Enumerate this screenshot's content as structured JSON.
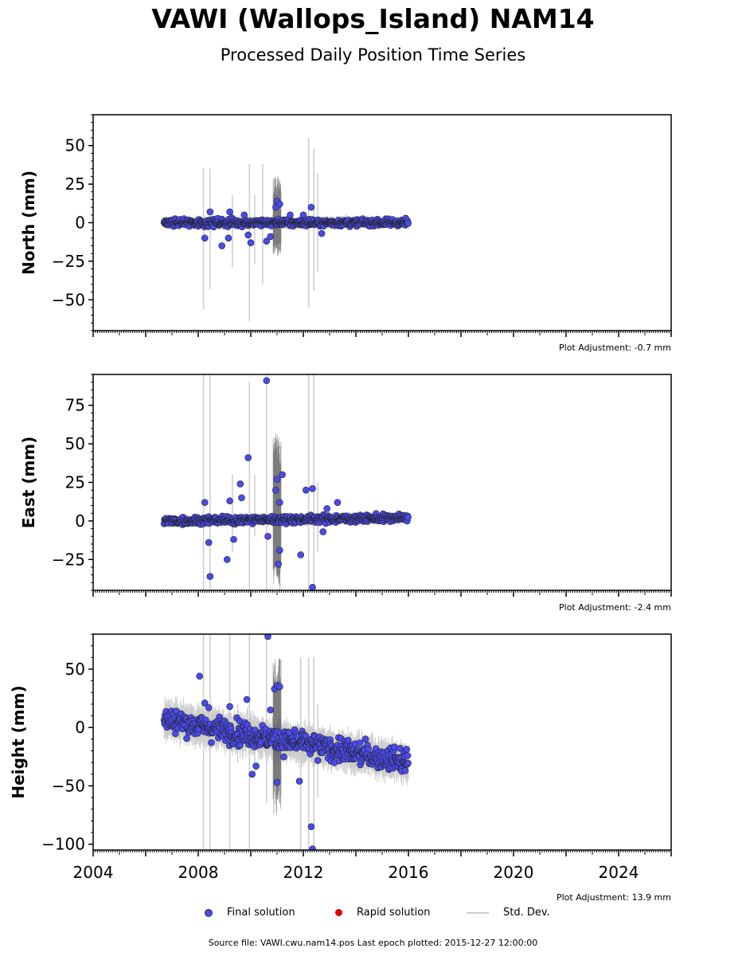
{
  "header": {
    "title": "VAWI (Wallops_Island) NAM14",
    "subtitle": "Processed Daily Position Time Series"
  },
  "legend": {
    "final": "Final solution",
    "rapid": "Rapid solution",
    "std": "Std. Dev."
  },
  "colors": {
    "final": "#4a4aee",
    "rapid": "#dd0000",
    "std": "#cccccc",
    "std_dense": "#555555"
  },
  "footer": {
    "source": "Source file: VAWI.cwu.nam14.pos  Last epoch plotted: 2015-12-27 12:00:00"
  },
  "chart_data": [
    {
      "type": "scatter",
      "xlabel": "",
      "ylabel": "North (mm)",
      "xlim": [
        2004,
        2026
      ],
      "ylim": [
        -70,
        70
      ],
      "yticks": [
        -50,
        -25,
        0,
        25,
        50
      ],
      "xticks": [
        2004,
        2008,
        2012,
        2016,
        2020,
        2024
      ],
      "show_xtick_labels": false,
      "adjustment": "Plot Adjustment: -0.7 mm",
      "data_range": [
        2006.7,
        2016.0
      ],
      "trend": [
        [
          2006.7,
          0
        ],
        [
          2016.0,
          0
        ]
      ],
      "noise": 1.6,
      "series": [
        {
          "name": "Final solution",
          "outliers": [
            [
              2008.25,
              -10
            ],
            [
              2008.45,
              7
            ],
            [
              2008.9,
              -15
            ],
            [
              2009.15,
              -10
            ],
            [
              2009.2,
              7
            ],
            [
              2009.75,
              5
            ],
            [
              2009.9,
              -8
            ],
            [
              2010.0,
              -13
            ],
            [
              2010.6,
              -12
            ],
            [
              2010.75,
              -9
            ],
            [
              2010.95,
              10
            ],
            [
              2011.0,
              14
            ],
            [
              2011.1,
              12
            ],
            [
              2012.3,
              10
            ],
            [
              2012.7,
              -7
            ],
            [
              2011.5,
              5
            ],
            [
              2012.0,
              5
            ]
          ]
        },
        {
          "name": "Rapid solution",
          "values": []
        }
      ],
      "std_spikes": [
        [
          2008.2,
          -56,
          35
        ],
        [
          2008.45,
          -43,
          35
        ],
        [
          2009.3,
          -29,
          18
        ],
        [
          2009.95,
          -64,
          38
        ],
        [
          2010.15,
          -27,
          18
        ],
        [
          2010.45,
          -40,
          38
        ],
        [
          2012.2,
          -55,
          55
        ],
        [
          2012.4,
          -44,
          48
        ],
        [
          2012.55,
          -32,
          32
        ]
      ],
      "dense_std": [
        2010.85,
        2011.15,
        -22,
        30
      ]
    },
    {
      "type": "scatter",
      "xlabel": "",
      "ylabel": "East (mm)",
      "xlim": [
        2004,
        2026
      ],
      "ylim": [
        -45,
        95
      ],
      "yticks": [
        -25,
        0,
        25,
        50,
        75
      ],
      "xticks": [
        2004,
        2008,
        2012,
        2016,
        2020,
        2024
      ],
      "show_xtick_labels": false,
      "adjustment": "Plot Adjustment: -2.4 mm",
      "data_range": [
        2006.7,
        2016.0
      ],
      "trend": [
        [
          2006.7,
          0
        ],
        [
          2016.0,
          2
        ]
      ],
      "noise": 1.6,
      "series": [
        {
          "name": "Final solution",
          "outliers": [
            [
              2008.25,
              12
            ],
            [
              2008.4,
              -14
            ],
            [
              2008.45,
              -36
            ],
            [
              2009.2,
              13
            ],
            [
              2009.1,
              -25
            ],
            [
              2009.35,
              -12
            ],
            [
              2009.6,
              24
            ],
            [
              2009.65,
              15
            ],
            [
              2009.9,
              41
            ],
            [
              2010.6,
              91
            ],
            [
              2010.65,
              -10
            ],
            [
              2010.95,
              20
            ],
            [
              2011.0,
              27
            ],
            [
              2011.05,
              -28
            ],
            [
              2011.1,
              -19
            ],
            [
              2011.2,
              30
            ],
            [
              2011.1,
              12
            ],
            [
              2011.9,
              -22
            ],
            [
              2012.1,
              20
            ],
            [
              2012.35,
              21
            ],
            [
              2012.35,
              -43
            ],
            [
              2012.75,
              -7
            ],
            [
              2013.3,
              12
            ],
            [
              2012.9,
              8
            ]
          ]
        },
        {
          "name": "Rapid solution",
          "values": []
        }
      ],
      "std_spikes": [
        [
          2008.2,
          -45,
          95
        ],
        [
          2008.45,
          -45,
          95
        ],
        [
          2009.3,
          -20,
          30
        ],
        [
          2009.95,
          -45,
          90
        ],
        [
          2010.15,
          -10,
          30
        ],
        [
          2010.6,
          -45,
          95
        ],
        [
          2012.2,
          -45,
          95
        ],
        [
          2012.4,
          -45,
          95
        ],
        [
          2012.55,
          -20,
          25
        ]
      ],
      "dense_std": [
        2010.85,
        2011.15,
        -45,
        58
      ]
    },
    {
      "type": "scatter",
      "xlabel": "",
      "ylabel": "Height (mm)",
      "xlim": [
        2004,
        2026
      ],
      "ylim": [
        -105,
        80
      ],
      "yticks": [
        -100,
        -50,
        0,
        50
      ],
      "xticks": [
        2004,
        2008,
        2012,
        2016,
        2020,
        2024
      ],
      "show_xtick_labels": true,
      "adjustment": "Plot Adjustment: 13.9 mm",
      "data_range": [
        2006.7,
        2016.0
      ],
      "trend": [
        [
          2006.7,
          7
        ],
        [
          2016.0,
          -30
        ]
      ],
      "noise": 7,
      "series": [
        {
          "name": "Final solution",
          "outliers": [
            [
              2008.05,
              44
            ],
            [
              2008.25,
              21
            ],
            [
              2008.4,
              17
            ],
            [
              2009.2,
              18
            ],
            [
              2009.85,
              24
            ],
            [
              2010.05,
              -40
            ],
            [
              2010.2,
              -33
            ],
            [
              2010.65,
              78
            ],
            [
              2010.75,
              15
            ],
            [
              2010.9,
              33
            ],
            [
              2011.0,
              36
            ],
            [
              2011.1,
              35
            ],
            [
              2011.0,
              -47
            ],
            [
              2011.85,
              -46
            ],
            [
              2012.3,
              -85
            ],
            [
              2012.35,
              -104
            ]
          ]
        },
        {
          "name": "Rapid solution",
          "values": []
        }
      ],
      "std_spikes": [
        [
          2008.2,
          -105,
          80
        ],
        [
          2008.45,
          -105,
          80
        ],
        [
          2009.2,
          -105,
          80
        ],
        [
          2009.5,
          -30,
          20
        ],
        [
          2009.95,
          -105,
          80
        ],
        [
          2010.15,
          -40,
          10
        ],
        [
          2010.6,
          -65,
          78
        ],
        [
          2011.9,
          -105,
          60
        ],
        [
          2012.2,
          -105,
          60
        ],
        [
          2012.4,
          -105,
          60
        ],
        [
          2012.55,
          -60,
          20
        ]
      ],
      "dense_std": [
        2010.85,
        2011.15,
        -75,
        60
      ]
    }
  ]
}
